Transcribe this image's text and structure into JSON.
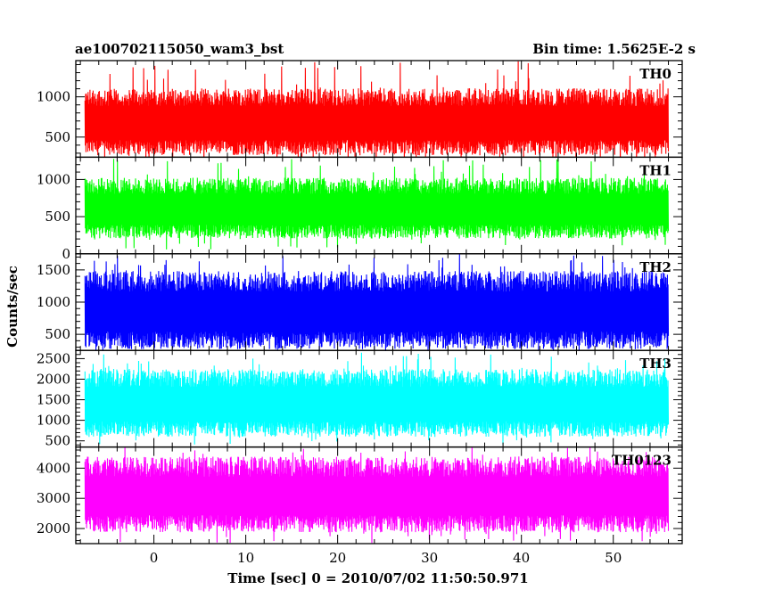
{
  "chart_data": {
    "type": "line",
    "title": "ae100702115050_wam3_bst",
    "subtitle": "Bin time: 1.5625E-2 s",
    "xlabel": "Time [sec] 0 = 2010/07/02 11:50:50.971",
    "ylabel": "Counts/sec",
    "xlim": [
      -8.5,
      57.5
    ],
    "data_x_range": [
      -7.5,
      56.0
    ],
    "x_ticks": [
      0,
      10,
      20,
      30,
      40,
      50
    ],
    "x_minor_step": 2,
    "grid": false,
    "panels": [
      {
        "name": "TH0",
        "color": "#ff0000",
        "ylim": [
          250,
          1450
        ],
        "y_ticks": [
          500,
          1000
        ],
        "y_minor_step": 100,
        "typical_low": 350,
        "typical_high": 980,
        "min": 130,
        "max": 1450
      },
      {
        "name": "TH1",
        "color": "#00ff00",
        "ylim": [
          0,
          1300
        ],
        "y_ticks": [
          0,
          500,
          1000
        ],
        "y_minor_step": 100,
        "typical_low": 280,
        "typical_high": 900,
        "min": 50,
        "max": 1300
      },
      {
        "name": "TH2",
        "color": "#0000ff",
        "ylim": [
          250,
          1750
        ],
        "y_ticks": [
          500,
          1000,
          1500
        ],
        "y_minor_step": 100,
        "typical_low": 380,
        "typical_high": 1300,
        "min": 230,
        "max": 1750
      },
      {
        "name": "TH3",
        "color": "#00ffff",
        "ylim": [
          350,
          2700
        ],
        "y_ticks": [
          500,
          1000,
          1500,
          2000,
          2500
        ],
        "y_minor_step": 100,
        "typical_low": 750,
        "typical_high": 2000,
        "min": 400,
        "max": 2650
      },
      {
        "name": "TH0123",
        "color": "#ff00ff",
        "ylim": [
          1500,
          4700
        ],
        "y_ticks": [
          2000,
          3000,
          4000
        ],
        "y_minor_step": 200,
        "typical_low": 2100,
        "typical_high": 4000,
        "min": 1500,
        "max": 4700
      }
    ]
  }
}
